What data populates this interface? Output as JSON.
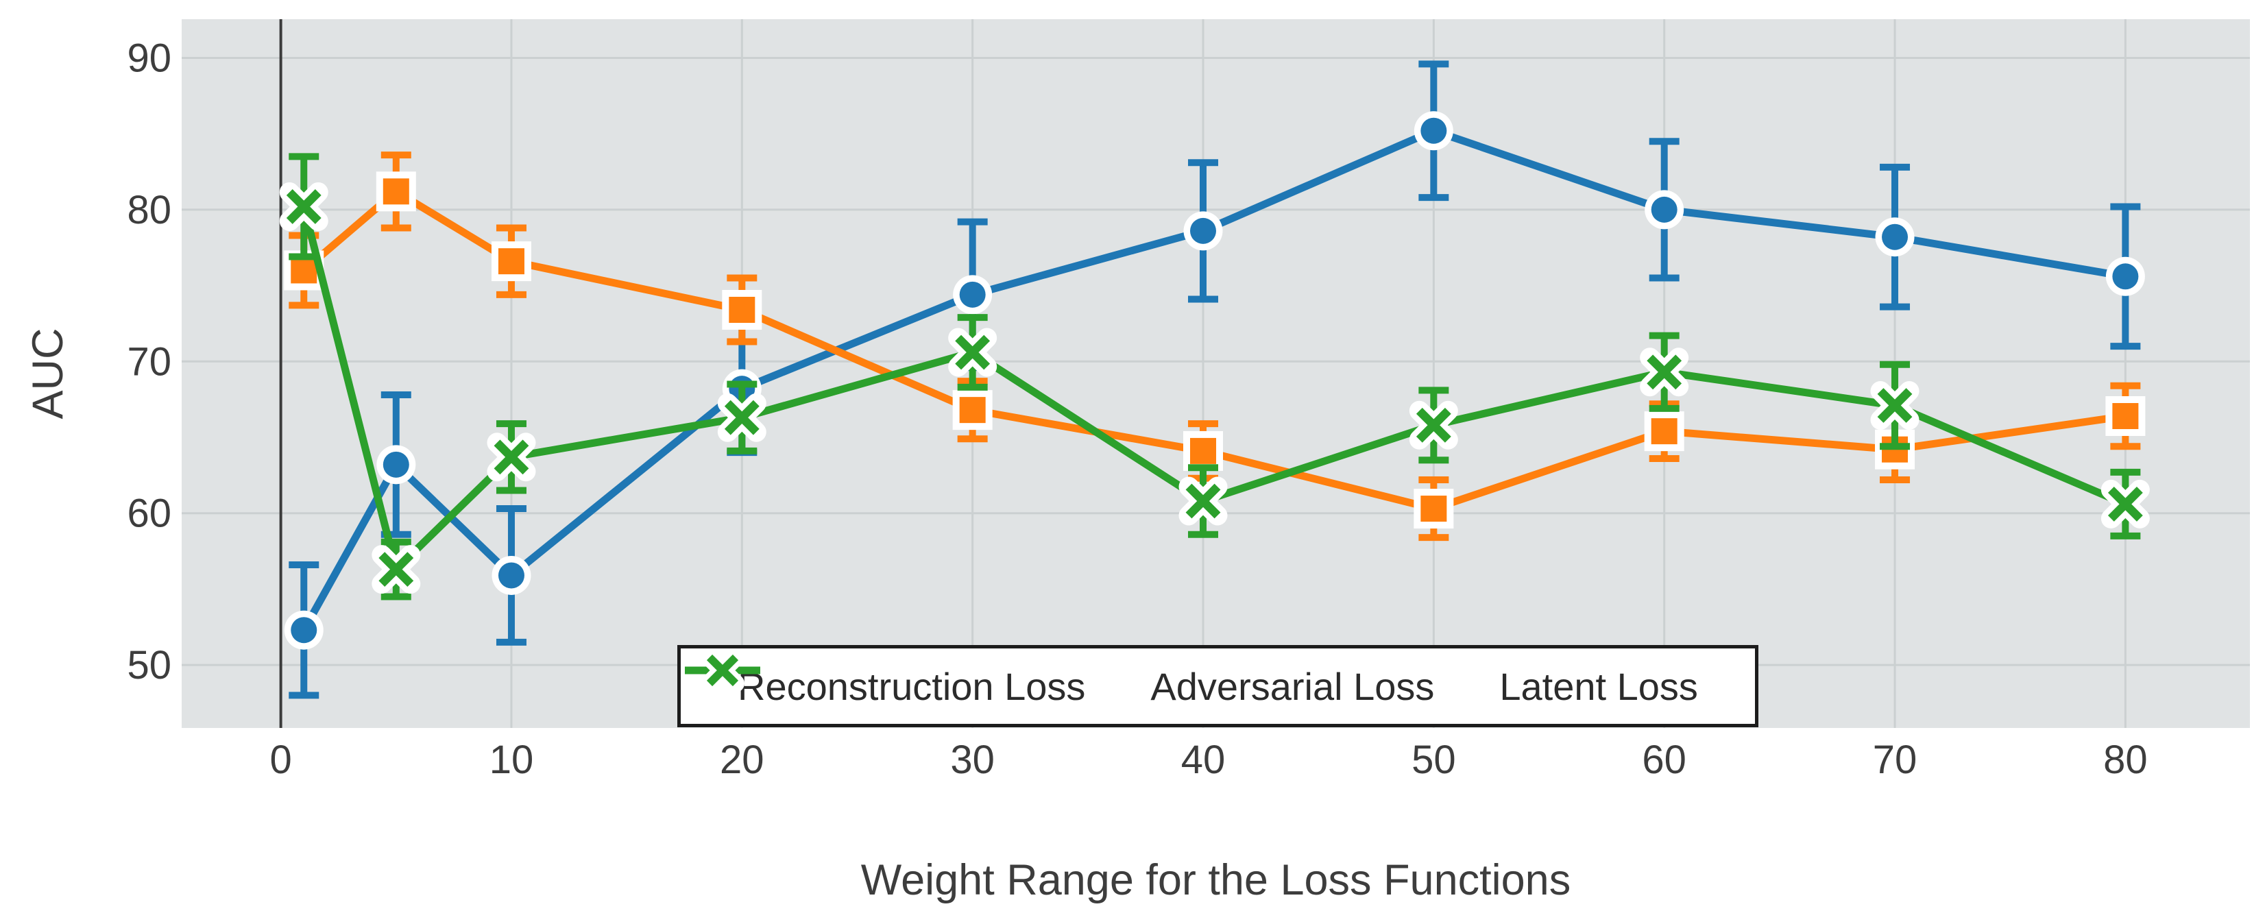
{
  "chart_data": {
    "type": "line",
    "title": "",
    "xlabel": "Weight Range for the Loss Functions",
    "ylabel": "AUC",
    "x": [
      1,
      5,
      10,
      20,
      30,
      40,
      50,
      60,
      70,
      80
    ],
    "x_ticks": [
      0,
      10,
      20,
      30,
      40,
      50,
      60,
      70,
      80
    ],
    "y_ticks": [
      50,
      60,
      70,
      80,
      90
    ],
    "xlim": [
      -4.3,
      85.4
    ],
    "ylim": [
      45.85,
      92.55
    ],
    "grid": true,
    "vline_x": 0,
    "legend_position": "lower center",
    "plot_bg_color": "#e0e3e4",
    "grid_color": "#cbd0d1",
    "vline_color": "#3b3b3b",
    "series": [
      {
        "name": "Reconstruction Loss",
        "color": "#1f77b4",
        "marker": "circle",
        "values": [
          52.3,
          63.2,
          55.9,
          68.2,
          74.4,
          78.6,
          85.2,
          80.0,
          78.2,
          75.6
        ],
        "errors": [
          4.3,
          4.6,
          4.4,
          4.2,
          4.8,
          4.5,
          4.4,
          4.5,
          4.6,
          4.6
        ]
      },
      {
        "name": "Adversarial Loss",
        "color": "#ff7f0e",
        "marker": "square",
        "values": [
          76.0,
          81.2,
          76.6,
          73.4,
          66.8,
          64.1,
          60.3,
          65.4,
          64.2,
          66.4
        ],
        "errors": [
          2.3,
          2.4,
          2.2,
          2.1,
          1.9,
          1.8,
          1.9,
          1.8,
          2.0,
          2.0
        ]
      },
      {
        "name": "Latent Loss",
        "color": "#2ca02c",
        "marker": "x",
        "values": [
          80.2,
          56.3,
          63.7,
          66.3,
          70.6,
          60.8,
          65.8,
          69.3,
          67.1,
          60.6
        ],
        "errors": [
          3.3,
          1.8,
          2.2,
          2.2,
          2.3,
          2.2,
          2.3,
          2.4,
          2.7,
          2.1
        ]
      }
    ]
  }
}
